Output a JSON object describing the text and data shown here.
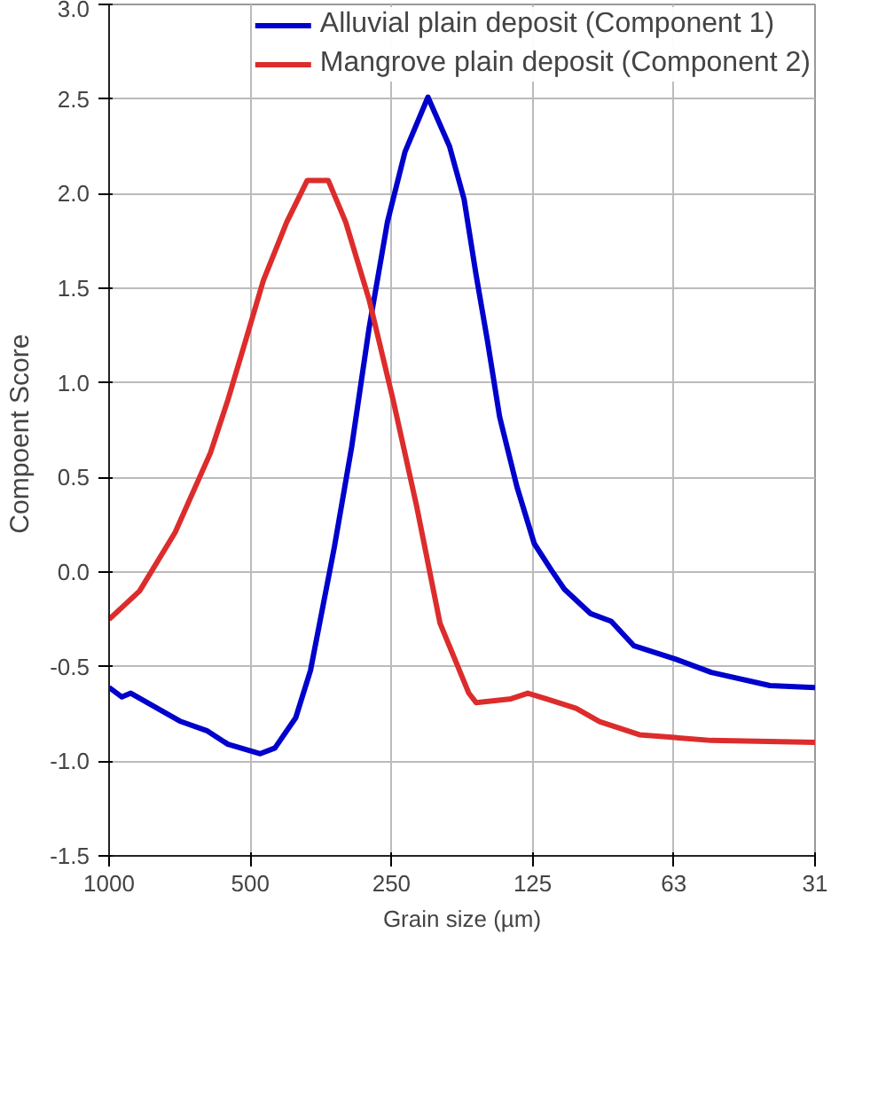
{
  "chart_data": {
    "type": "line",
    "xlabel": "Grain size (µm)",
    "ylabel": "Compoent  Score",
    "log": "x",
    "xlim": [
      1000,
      31.25
    ],
    "xticks": [
      1000,
      500,
      250,
      125,
      {
        "value": 62.5,
        "label": "63"
      },
      {
        "value": 31.25,
        "label": "31"
      }
    ],
    "ylim": [
      -1.5,
      3
    ],
    "yticks": [
      {
        "value": -1.5,
        "label": "-1.5"
      },
      {
        "value": -1,
        "label": "-1.0"
      },
      {
        "value": -0.5,
        "label": "-0.5"
      },
      {
        "value": 0,
        "label": "0.0"
      },
      {
        "value": 0.5,
        "label": "0.5"
      },
      {
        "value": 1,
        "label": "1.0"
      },
      {
        "value": 1.5,
        "label": "1.5"
      },
      {
        "value": 2,
        "label": "2.0"
      },
      {
        "value": 2.5,
        "label": "2.5"
      },
      {
        "value": 3,
        "label": "3.0"
      }
    ],
    "grid": true,
    "legend": "top",
    "line_style": "solid",
    "marker": "none",
    "series": [
      {
        "name": "Alluvial plain deposit (Component 1)",
        "color": "#0000cc",
        "x": [
          1000,
          939,
          899,
          789,
          703,
          617,
          558,
          476,
          443,
          400,
          372,
          331,
          304,
          279,
          255,
          234,
          209,
          188,
          175,
          165,
          156,
          147,
          135,
          124,
          114,
          107,
          94,
          85,
          76,
          62,
          52,
          39,
          31.25
        ],
        "values": [
          -0.61,
          -0.66,
          -0.64,
          -0.72,
          -0.79,
          -0.84,
          -0.91,
          -0.96,
          -0.93,
          -0.77,
          -0.52,
          0.13,
          0.66,
          1.29,
          1.85,
          2.22,
          2.51,
          2.25,
          1.97,
          1.57,
          1.22,
          0.82,
          0.45,
          0.15,
          0.01,
          -0.09,
          -0.22,
          -0.26,
          -0.39,
          -0.46,
          -0.53,
          -0.6,
          -0.61
        ]
      },
      {
        "name": "Mangrove plain deposit (Component 2)",
        "color": "#dd2c2c",
        "x": [
          1000,
          861,
          723,
          608,
          558,
          512,
          469,
          418,
          378,
          341,
          313,
          279,
          248,
          221,
          197,
          171,
          165,
          139,
          128,
          117,
          101,
          90,
          74,
          52,
          31.25
        ],
        "values": [
          -0.25,
          -0.1,
          0.21,
          0.63,
          0.91,
          1.22,
          1.54,
          1.85,
          2.07,
          2.07,
          1.85,
          1.44,
          0.91,
          0.35,
          -0.27,
          -0.64,
          -0.69,
          -0.67,
          -0.64,
          -0.67,
          -0.72,
          -0.79,
          -0.86,
          -0.89,
          -0.9
        ]
      }
    ]
  }
}
